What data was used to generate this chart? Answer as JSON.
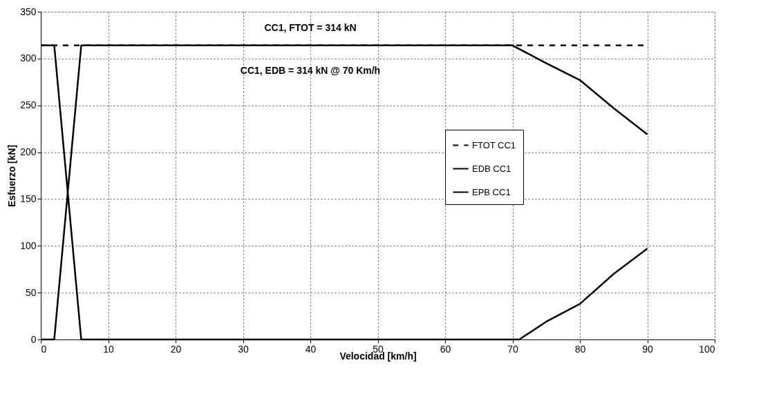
{
  "chart_data": {
    "type": "line",
    "xlabel": "Velocidad [km/h]",
    "ylabel": "Esfuerzo [kN]",
    "xlim": [
      0,
      100
    ],
    "xticks": [
      0,
      10,
      20,
      30,
      40,
      50,
      60,
      70,
      80,
      90,
      100
    ],
    "ylim": [
      0,
      350
    ],
    "yticks": [
      0,
      50,
      100,
      150,
      200,
      250,
      300,
      350
    ],
    "grid": true,
    "legend": "right",
    "marker": "none",
    "series": [
      {
        "name": "FTOT CC1",
        "color": "#000000",
        "line_style": "dashed",
        "x": [
          0,
          90
        ],
        "values": [
          314,
          314
        ]
      },
      {
        "name": "EDB CC1",
        "color": "#000000",
        "line_style": "solid",
        "x": [
          0,
          2,
          6,
          70,
          75,
          80,
          85,
          90
        ],
        "values": [
          0,
          0,
          314,
          314,
          295,
          277,
          247,
          219
        ]
      },
      {
        "name": "EPB CC1",
        "color": "#000000",
        "line_style": "solid",
        "x": [
          0,
          2,
          6,
          70,
          71,
          75,
          80,
          85,
          90
        ],
        "values": [
          314,
          314,
          0,
          0,
          0,
          19,
          38,
          70,
          97
        ]
      }
    ],
    "annotations": [
      "CC1,  FTOT  = 314 kN",
      "CC1,  EDB  = 314 kN @ 70 Km/h"
    ]
  }
}
